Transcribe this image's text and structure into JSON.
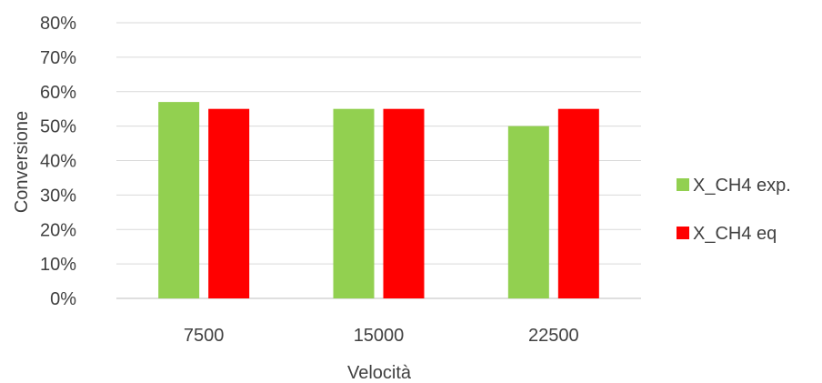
{
  "chart_data": {
    "type": "bar",
    "categories": [
      "7500",
      "15000",
      "22500"
    ],
    "series": [
      {
        "name": "X_CH4 exp.",
        "values": [
          0.57,
          0.55,
          0.5
        ],
        "color": "#92D050"
      },
      {
        "name": "X_CH4 eq",
        "values": [
          0.55,
          0.55,
          0.55
        ],
        "color": "#FF0000"
      }
    ],
    "title": "",
    "xlabel": "Velocità",
    "ylabel": "Conversione",
    "ylim": [
      0,
      0.8
    ],
    "yticks": [
      "0%",
      "10%",
      "20%",
      "30%",
      "40%",
      "50%",
      "60%",
      "70%",
      "80%"
    ],
    "grid": true,
    "legend_position": "right"
  }
}
